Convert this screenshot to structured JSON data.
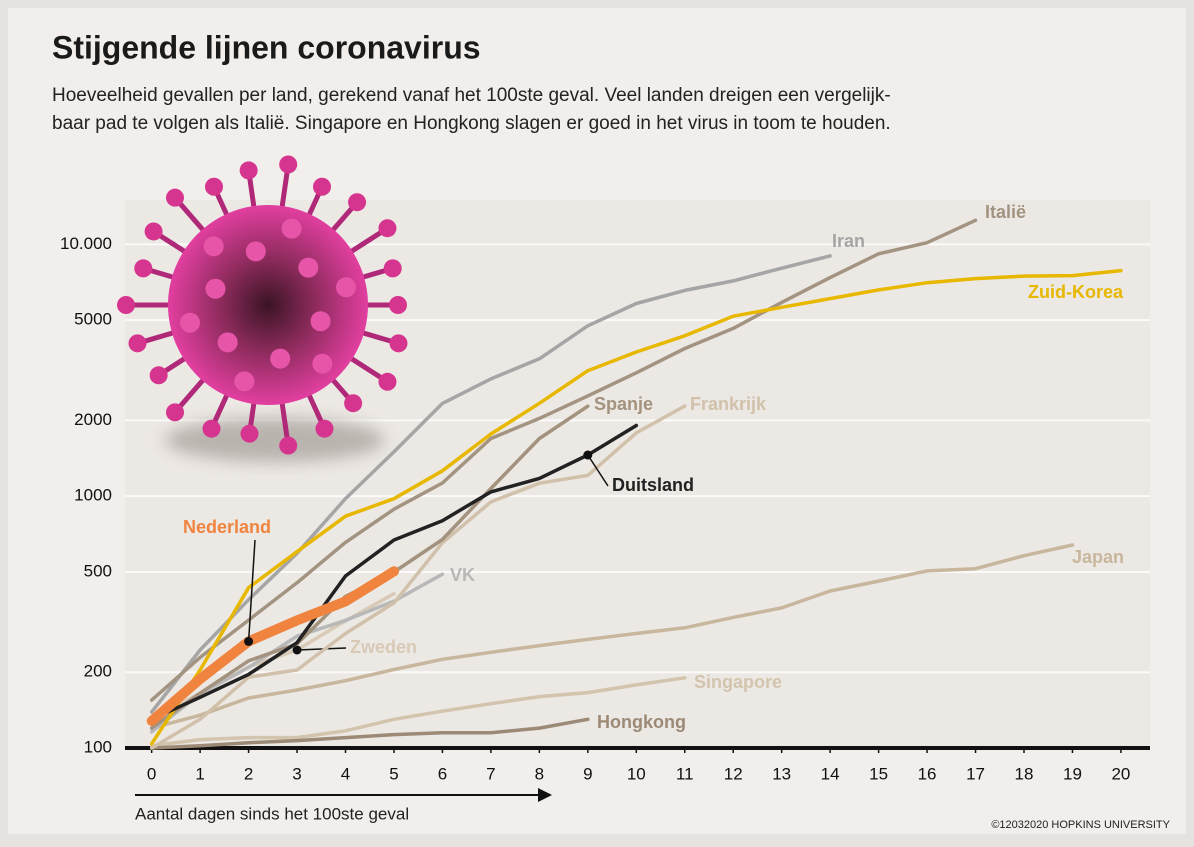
{
  "chart_data": {
    "type": "line",
    "title": "Stijgende lijnen coronavirus",
    "subtitle": [
      "Hoeveelheid gevallen per land, gerekend vanaf het 100ste geval. Veel landen dreigen een vergelijk-",
      "baar pad te volgen als Italië. Singapore en Hongkong slagen er goed in het virus in toom te houden."
    ],
    "x_label": "Aantal dagen sinds het 100ste geval",
    "source": "©12032020 HOPKINS UNIVERSITY",
    "log_scale": true,
    "grid": true,
    "x": [
      0,
      1,
      2,
      3,
      4,
      5,
      6,
      7,
      8,
      9,
      10,
      11,
      12,
      13,
      14,
      15,
      16,
      17,
      18,
      19,
      20
    ],
    "xlim": [
      -0.55,
      20.6
    ],
    "xticks": [
      0,
      1,
      2,
      3,
      4,
      5,
      6,
      7,
      8,
      9,
      10,
      11,
      12,
      13,
      14,
      15,
      16,
      17,
      18,
      19,
      20
    ],
    "ylim": [
      100,
      15000
    ],
    "yticks": [
      100,
      200,
      500,
      1000,
      2000,
      5000,
      {
        "value": 10000,
        "label": "10.000"
      }
    ],
    "series": [
      {
        "name": "Japan",
        "color": "#c8b69d",
        "values": [
          120,
          135,
          158,
          170,
          185,
          205,
          225,
          240,
          255,
          270,
          285,
          300,
          330,
          360,
          420,
          460,
          505,
          515,
          580,
          640,
          null
        ]
      },
      {
        "name": "Singapore",
        "color": "#d3c4ae",
        "values": [
          102,
          108,
          110,
          110,
          117,
          130,
          140,
          150,
          160,
          166,
          178,
          190,
          null,
          null,
          null,
          null,
          null,
          null,
          null,
          null,
          null
        ]
      },
      {
        "name": "Hongkong",
        "color": "#9c8a76",
        "values": [
          100,
          102,
          105,
          107,
          110,
          113,
          115,
          115,
          120,
          130,
          null,
          null,
          null,
          null,
          null,
          null,
          null,
          null,
          null,
          null,
          null
        ]
      },
      {
        "name": "Zweden",
        "color": "#d8cab6",
        "values": [
          130,
          165,
          210,
          245,
          320,
          410,
          null,
          null,
          null,
          null,
          null,
          null,
          null,
          null,
          null,
          null,
          null,
          null,
          null,
          null,
          null
        ]
      },
      {
        "name": "VK",
        "color": "#b8b8b8",
        "values": [
          116,
          164,
          209,
          278,
          321,
          383,
          490,
          null,
          null,
          null,
          null,
          null,
          null,
          null,
          null,
          null,
          null,
          null,
          null,
          null,
          null
        ]
      },
      {
        "name": "Frankrijk",
        "color": "#d1c1ab",
        "values": [
          100,
          130,
          191,
          204,
          285,
          377,
          653,
          949,
          1126,
          1209,
          1784,
          2281,
          null,
          null,
          null,
          null,
          null,
          null,
          null,
          null,
          null
        ]
      },
      {
        "name": "Spanje",
        "color": "#a3927d",
        "values": [
          120,
          165,
          222,
          259,
          400,
          500,
          673,
          1073,
          1695,
          2277,
          null,
          null,
          null,
          null,
          null,
          null,
          null,
          null,
          null,
          null,
          null
        ]
      },
      {
        "name": "Iran",
        "color": "#a5a5a5",
        "values": [
          139,
          245,
          388,
          593,
          978,
          1501,
          2336,
          2922,
          3513,
          4747,
          5823,
          6566,
          7161,
          8042,
          9000,
          null,
          null,
          null,
          null,
          null,
          null
        ]
      },
      {
        "name": "Italië",
        "color": "#a39482",
        "values": [
          155,
          229,
          322,
          453,
          655,
          888,
          1128,
          1694,
          2036,
          2502,
          3089,
          3858,
          4636,
          5883,
          7375,
          9172,
          10149,
          12462,
          null,
          null,
          null
        ]
      },
      {
        "name": "Zuid-Korea",
        "color": "#e8b700",
        "values": [
          104,
          204,
          433,
          602,
          833,
          977,
          1261,
          1766,
          2337,
          3150,
          3736,
          4335,
          5186,
          5621,
          6088,
          6593,
          7041,
          7314,
          7478,
          7513,
          7869
        ]
      },
      {
        "name": "Duitsland",
        "color": "#222222",
        "values": [
          130,
          159,
          196,
          262,
          482,
          670,
          799,
          1040,
          1176,
          1457,
          1908,
          null,
          null,
          null,
          null,
          null,
          null,
          null,
          null,
          null,
          null
        ]
      },
      {
        "name": "Nederland",
        "color": "#f0843f",
        "values": [
          128,
          188,
          265,
          321,
          382,
          503,
          null,
          null,
          null,
          null,
          null,
          null,
          null,
          null,
          null,
          null,
          null,
          null,
          null,
          null,
          null
        ]
      }
    ]
  }
}
